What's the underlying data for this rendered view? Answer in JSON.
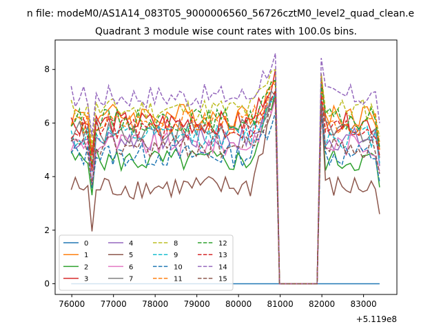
{
  "chart_data": {
    "type": "line",
    "suptitle": "n file: modeM0/AS1A14_083T05_9000006560_56726cztM0_level2_quad_clean.e",
    "title": "Quadrant 3 module wise count rates with 100.0s bins.",
    "xlabel": "",
    "ylabel": "",
    "x_offset_label": "+5.119e8",
    "xlim": [
      75600,
      83800
    ],
    "ylim": [
      -0.4,
      9.1
    ],
    "xticks": [
      76000,
      77000,
      78000,
      79000,
      80000,
      81000,
      82000,
      83000
    ],
    "xtick_labels": [
      "76000",
      "77000",
      "78000",
      "79000",
      "80000",
      "81000",
      "82000",
      "83000"
    ],
    "yticks": [
      0,
      2,
      4,
      6,
      8
    ],
    "ytick_labels": [
      "0",
      "2",
      "4",
      "6",
      "8"
    ],
    "legend": {
      "position": "lower-left",
      "ncol": 4
    },
    "gap": {
      "start": 80985,
      "end": 81885
    },
    "segment1": {
      "x_start": 75985,
      "x_end": 80885,
      "step": 100
    },
    "segment2": {
      "x_start": 81985,
      "x_end": 83385,
      "step": 100
    },
    "series": [
      {
        "name": "0",
        "color": "#1f77b4",
        "style": "solid",
        "level": 0.0,
        "peak": 0.0
      },
      {
        "name": "1",
        "color": "#ff7f0e",
        "style": "solid",
        "level": 6.3,
        "peak": 7.6
      },
      {
        "name": "2",
        "color": "#2ca02c",
        "style": "solid",
        "level": 4.6,
        "peak": 7.2
      },
      {
        "name": "3",
        "color": "#d62728",
        "style": "solid",
        "level": 6.0,
        "peak": 8.0
      },
      {
        "name": "4",
        "color": "#9467bd",
        "style": "solid",
        "level": 5.4,
        "peak": 7.0
      },
      {
        "name": "5",
        "color": "#8c564b",
        "style": "solid",
        "level": 3.6,
        "peak": 7.0
      },
      {
        "name": "6",
        "color": "#e377c2",
        "style": "solid",
        "level": 5.2,
        "peak": 6.9
      },
      {
        "name": "7",
        "color": "#7f7f7f",
        "style": "solid",
        "level": 5.7,
        "peak": 7.0
      },
      {
        "name": "8",
        "color": "#bcbd22",
        "style": "dashed",
        "level": 6.5,
        "peak": 8.0
      },
      {
        "name": "9",
        "color": "#17becf",
        "style": "dashed",
        "level": 5.5,
        "peak": 7.1
      },
      {
        "name": "10",
        "color": "#1f77b4",
        "style": "dashed",
        "level": 4.8,
        "peak": 6.4
      },
      {
        "name": "11",
        "color": "#ff7f0e",
        "style": "dashed",
        "level": 6.0,
        "peak": 7.4
      },
      {
        "name": "12",
        "color": "#2ca02c",
        "style": "dashed",
        "level": 6.1,
        "peak": 7.6
      },
      {
        "name": "13",
        "color": "#d62728",
        "style": "dashed",
        "level": 5.8,
        "peak": 7.2
      },
      {
        "name": "14",
        "color": "#9467bd",
        "style": "dashed",
        "level": 7.0,
        "peak": 8.6
      },
      {
        "name": "15",
        "color": "#8c564b",
        "style": "dashed",
        "level": 5.1,
        "peak": 6.8
      }
    ]
  }
}
